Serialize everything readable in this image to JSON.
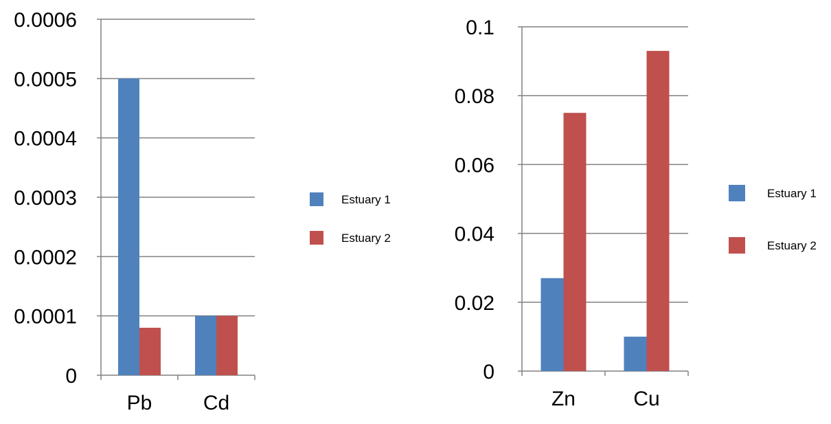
{
  "chart_data": [
    {
      "type": "bar",
      "title": "",
      "xlabel": "",
      "ylabel": "",
      "categories": [
        "Pb",
        "Cd"
      ],
      "ylim": [
        0,
        0.0006
      ],
      "yticks": [
        "0",
        "0.0001",
        "0.0002",
        "0.0003",
        "0.0004",
        "0.0005",
        "0.0006"
      ],
      "grid": true,
      "legend_position": "right",
      "series": [
        {
          "name": "Estuary 1",
          "color": "#4F81BD",
          "values": [
            0.0005,
            0.0001
          ]
        },
        {
          "name": "Estuary 2",
          "color": "#C0504D",
          "values": [
            8e-05,
            0.0001
          ]
        }
      ]
    },
    {
      "type": "bar",
      "title": "",
      "xlabel": "",
      "ylabel": "",
      "categories": [
        "Zn",
        "Cu"
      ],
      "ylim": [
        0,
        0.1
      ],
      "yticks": [
        "0",
        "0.02",
        "0.04",
        "0.06",
        "0.08",
        "0.1"
      ],
      "grid": true,
      "legend_position": "right",
      "series": [
        {
          "name": "Estuary 1",
          "color": "#4F81BD",
          "values": [
            0.027,
            0.01
          ]
        },
        {
          "name": "Estuary 2",
          "color": "#C0504D",
          "values": [
            0.075,
            0.093
          ]
        }
      ]
    }
  ]
}
